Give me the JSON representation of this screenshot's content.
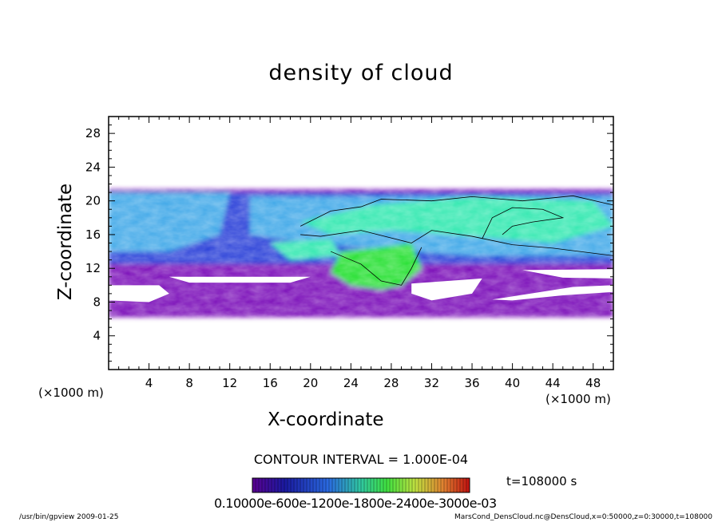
{
  "chart_data": {
    "type": "heatmap",
    "title": "density of cloud",
    "xlabel": "X-coordinate",
    "ylabel": "Z-coordinate",
    "x_unit_label": "(×1000 m)",
    "y_unit_label": "(×1000 m)",
    "xlim": [
      0,
      50
    ],
    "ylim": [
      0,
      30
    ],
    "x_ticks": [
      4,
      8,
      12,
      16,
      20,
      24,
      28,
      32,
      36,
      40,
      44,
      48
    ],
    "y_ticks": [
      4,
      8,
      12,
      16,
      20,
      24,
      28
    ],
    "contour_interval_text": "CONTOUR INTERVAL = 1.000E-04",
    "time_text": "t=108000 s",
    "colorbar_ticks_text": "0.10000e-600e-1200e-1800e-2400e-3000e-03",
    "colors": {
      "low": "#7a0fb8",
      "mid_low": "#2a3fd8",
      "mid": "#3fa8e8",
      "mid_high": "#33e8b0",
      "high": "#28e030"
    },
    "cloud_layer_z": [
      6.2,
      21.4
    ],
    "description_regions": [
      {
        "region": "upper band",
        "z_range": [
          12,
          21.4
        ],
        "level": "medium"
      },
      {
        "region": "core",
        "x_range": [
          23,
          31
        ],
        "z_range": [
          9,
          14
        ],
        "level": "high"
      },
      {
        "region": "lower band",
        "z_range": [
          6.2,
          12
        ],
        "level": "low"
      }
    ]
  },
  "footer": {
    "left": "/usr/bin/gpview   2009-01-25",
    "right": "MarsCond_DensCloud.nc@DensCloud,x=0:50000,z=0:30000,t=108000"
  }
}
